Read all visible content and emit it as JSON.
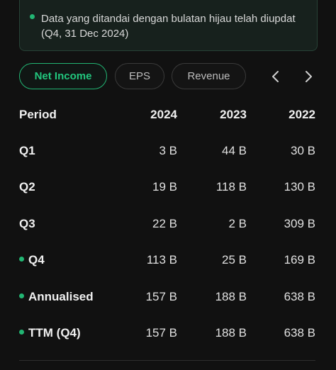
{
  "notice": {
    "text": "Data yang ditandai dengan bulatan hijau telah diupdat (Q4, 31 Dec 2024)",
    "accent": "#22b573"
  },
  "tabs": [
    {
      "label": "Net Income",
      "active": true
    },
    {
      "label": "EPS",
      "active": false
    },
    {
      "label": "Revenue",
      "active": false
    }
  ],
  "nav": {
    "prev_icon": "chevron-left-icon",
    "next_icon": "chevron-right-icon"
  },
  "table": {
    "headers": [
      "Period",
      "2024",
      "2023",
      "2022"
    ],
    "rows": [
      {
        "label": "Q1",
        "marked": false,
        "values": [
          "3 B",
          "44 B",
          "30 B"
        ]
      },
      {
        "label": "Q2",
        "marked": false,
        "values": [
          "19 B",
          "118 B",
          "130 B"
        ]
      },
      {
        "label": "Q3",
        "marked": false,
        "values": [
          "22 B",
          "2 B",
          "309 B"
        ]
      },
      {
        "label": "Q4",
        "marked": true,
        "values": [
          "113 B",
          "25 B",
          "169 B"
        ]
      },
      {
        "label": "Annualised",
        "marked": true,
        "values": [
          "157 B",
          "188 B",
          "638 B"
        ]
      },
      {
        "label": "TTM (Q4)",
        "marked": true,
        "values": [
          "157 B",
          "188 B",
          "638 B"
        ]
      }
    ]
  }
}
